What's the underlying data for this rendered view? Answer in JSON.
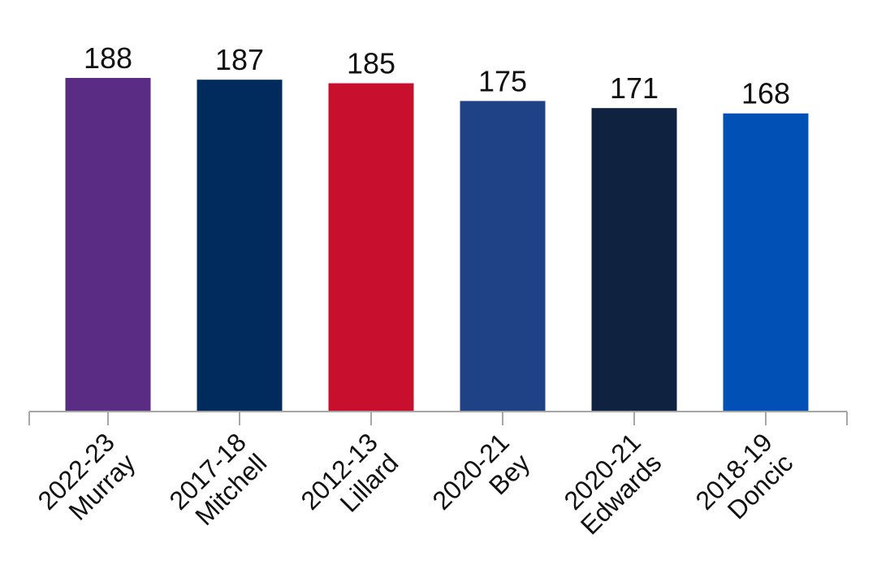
{
  "chart_data": {
    "type": "bar",
    "title": "",
    "xlabel": "",
    "ylabel": "",
    "categories": [
      [
        "2022-23",
        "Murray"
      ],
      [
        "2017-18",
        "Mitchell"
      ],
      [
        "2012-13",
        "Lillard"
      ],
      [
        "2020-21",
        "Bey"
      ],
      [
        "2020-21",
        "Edwards"
      ],
      [
        "2018-19",
        "Doncic"
      ]
    ],
    "values": [
      188,
      187,
      185,
      175,
      171,
      168
    ],
    "colors": [
      "#5B2C83",
      "#002B5C",
      "#C8102E",
      "#1F4287",
      "#0F2240",
      "#0050B5"
    ],
    "ylim": [
      0,
      188
    ],
    "grid": false,
    "legend": "none",
    "data_labels": true
  }
}
